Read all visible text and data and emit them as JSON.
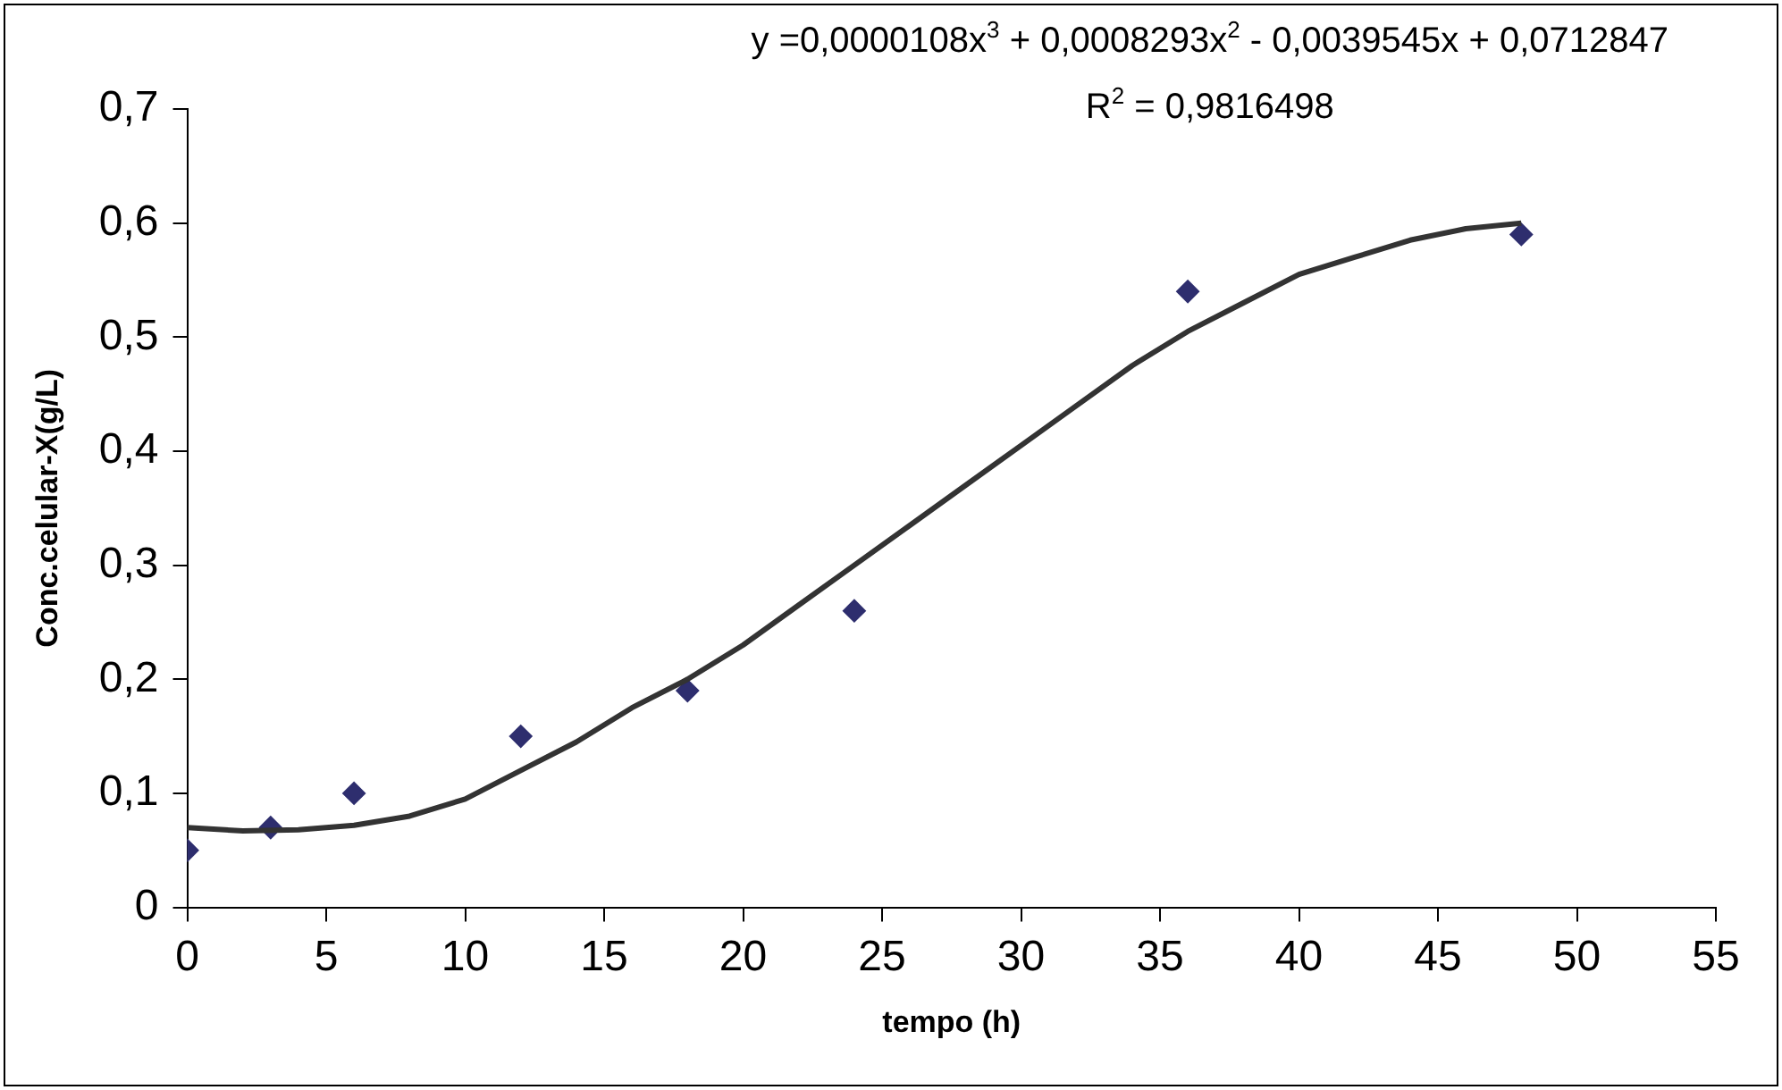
{
  "chart_data": {
    "type": "scatter",
    "xlabel": "tempo (h)",
    "ylabel": "Conc.celular-X(g/L)",
    "annotations": [
      "y =0,0000108x$^{3}$ + 0,0008293x$^{2}$ - 0,0039545x + 0,0712847",
      "R$^{2}$ = 0,9816498"
    ],
    "xlim": [
      0,
      55
    ],
    "xticks": [
      0,
      5,
      10,
      15,
      20,
      25,
      30,
      35,
      40,
      45,
      50,
      55
    ],
    "ylim": [
      0,
      0.7
    ],
    "yticks": [
      0,
      {
        "value": 0.1,
        "label": "0,1"
      },
      {
        "value": 0.2,
        "label": "0,2"
      },
      {
        "value": 0.3,
        "label": "0,3"
      },
      {
        "value": 0.4,
        "label": "0,4"
      },
      {
        "value": 0.5,
        "label": "0,5"
      },
      {
        "value": 0.6,
        "label": "0,6"
      },
      {
        "value": 0.7,
        "label": "0,7"
      }
    ],
    "grid": false,
    "series": [
      {
        "type": "line",
        "color": "#333333",
        "marker": "none",
        "line_style": "solid",
        "x": [
          0,
          2,
          4,
          6,
          8,
          10,
          12,
          14,
          16,
          18,
          20,
          22,
          24,
          26,
          28,
          30,
          32,
          34,
          36,
          38,
          40,
          42,
          44,
          46,
          48
        ],
        "values": [
          0.07,
          0.067,
          0.068,
          0.072,
          0.08,
          0.095,
          0.12,
          0.145,
          0.175,
          0.2,
          0.23,
          0.265,
          0.3,
          0.335,
          0.37,
          0.405,
          0.44,
          0.475,
          0.505,
          0.53,
          0.555,
          0.57,
          0.585,
          0.595,
          0.6
        ]
      },
      {
        "type": "scatter",
        "color": "#2e2e6e",
        "marker": "diamond",
        "x": [
          0,
          3,
          6,
          12,
          18,
          24,
          36,
          48
        ],
        "values": [
          0.05,
          0.07,
          0.1,
          0.15,
          0.19,
          0.26,
          0.54,
          0.59
        ]
      }
    ]
  }
}
